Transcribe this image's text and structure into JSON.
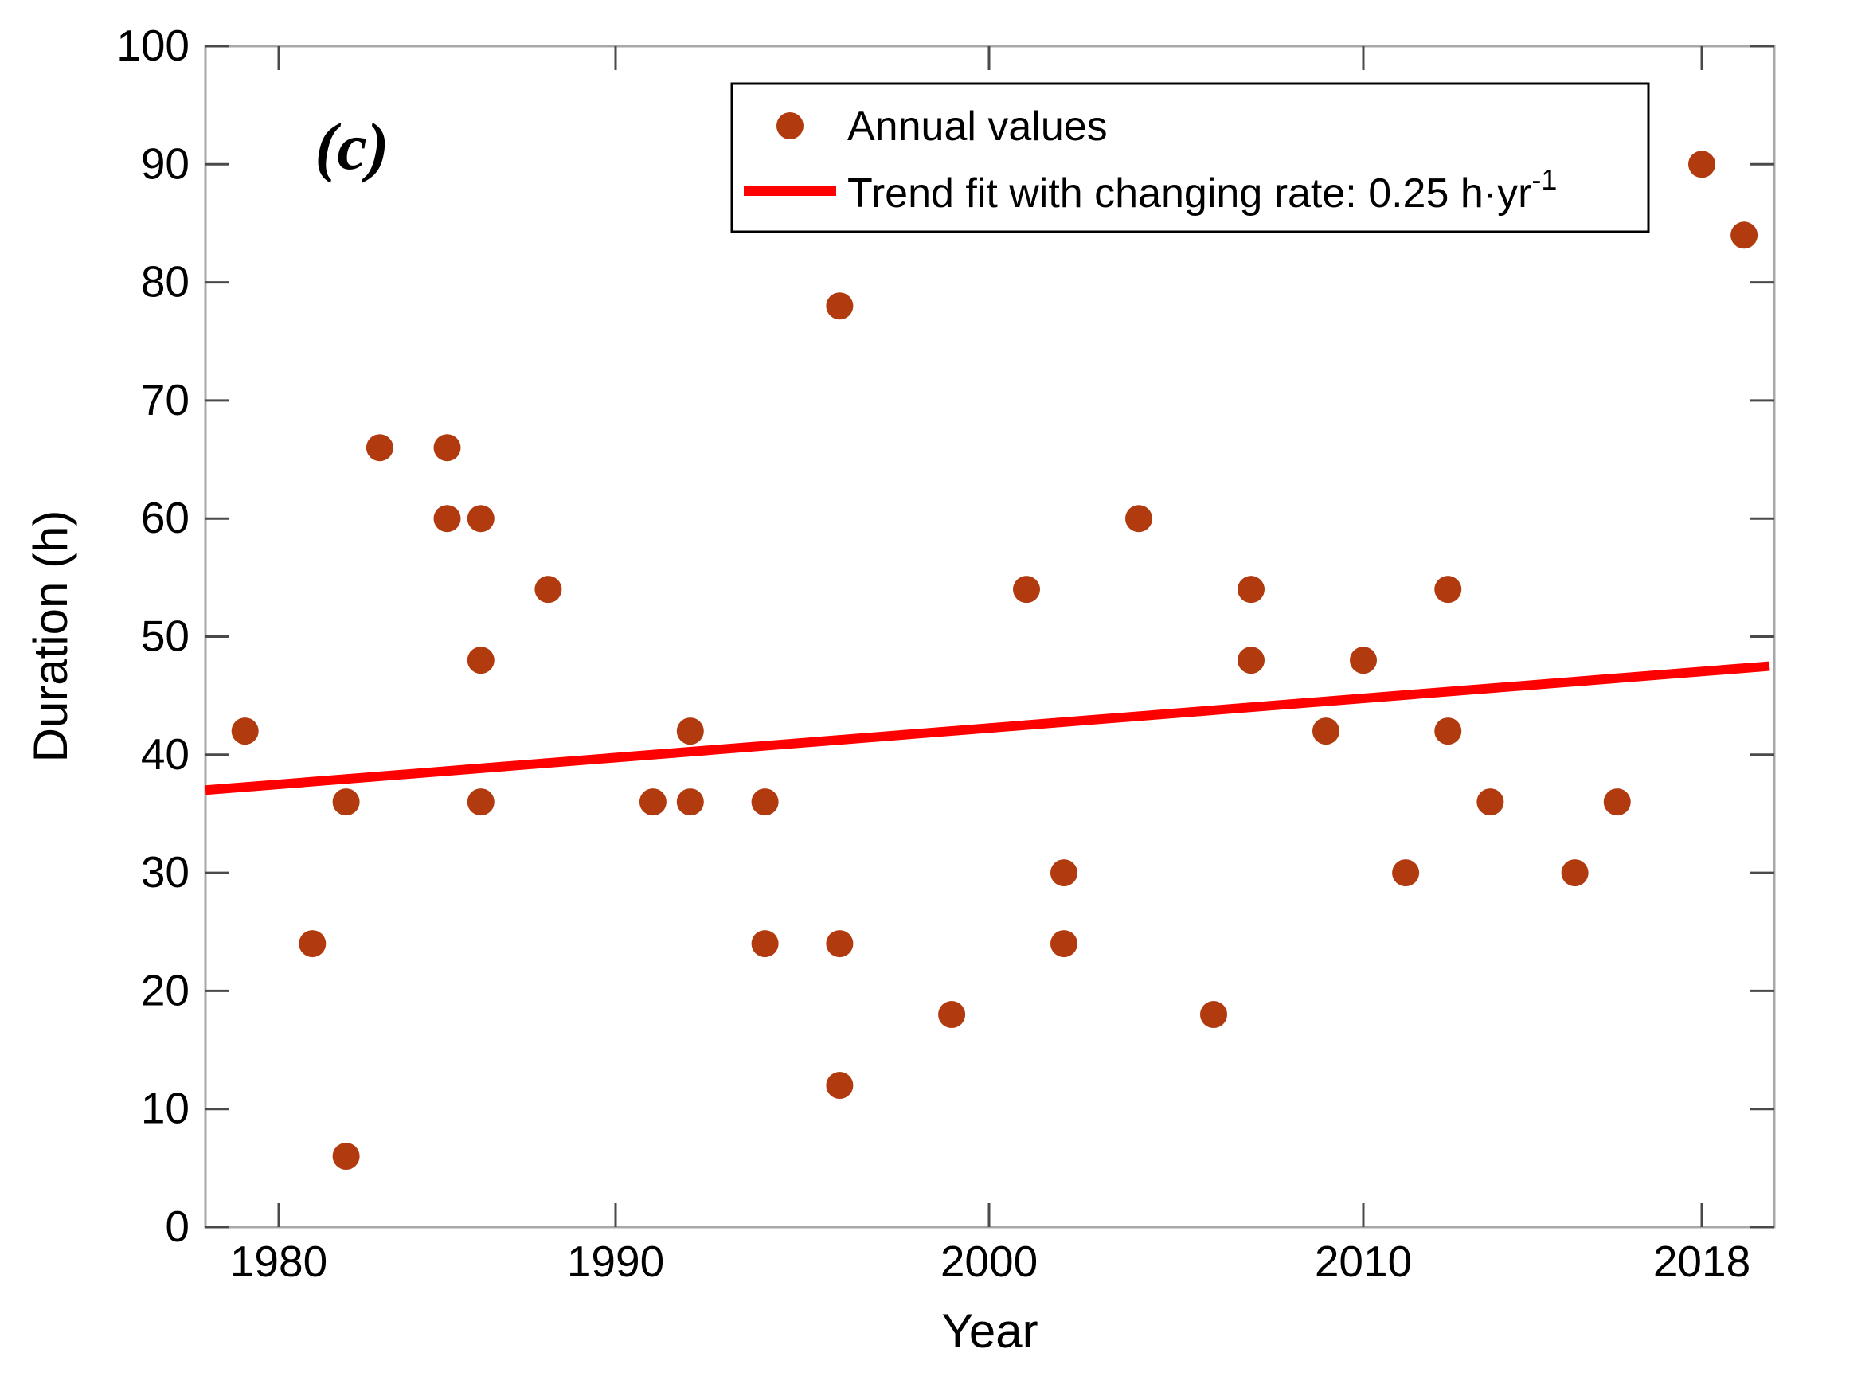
{
  "figure": {
    "panel_label": "(c)",
    "background": "#ffffff"
  },
  "chart_data": {
    "type": "scatter",
    "title": "(c)",
    "xlabel": "Year",
    "ylabel": "Duration (h)",
    "xlim": [
      1977.8,
      2019.6
    ],
    "ylim": [
      0,
      100
    ],
    "xticks": [
      1980,
      1990,
      2000,
      2010,
      2018
    ],
    "yticks": [
      0,
      10,
      20,
      30,
      40,
      50,
      60,
      70,
      80,
      90,
      100
    ],
    "grid": false,
    "legend_position": "top-center",
    "legend_annual_label": "Annual values",
    "legend_trend_label": "Trend fit with changing rate: 0.25 h·yr",
    "legend_trend_sup": "-1",
    "colors": {
      "point": "#b23a0f",
      "trend": "#ff0000",
      "box": "#a8a8a8",
      "tick": "#4a4a4a",
      "text": "#000000"
    },
    "series": [
      {
        "name": "Annual values",
        "type": "scatter",
        "color": "#b23a0f",
        "points": [
          [
            1979,
            42
          ],
          [
            1981,
            24
          ],
          [
            1982,
            36
          ],
          [
            1982,
            6
          ],
          [
            1983,
            66
          ],
          [
            1985,
            66
          ],
          [
            1985,
            60
          ],
          [
            1986,
            60
          ],
          [
            1986,
            48
          ],
          [
            1986,
            36
          ],
          [
            1988,
            54
          ],
          [
            1991,
            36
          ],
          [
            1992,
            36
          ],
          [
            1992,
            42
          ],
          [
            1994,
            36
          ],
          [
            1994,
            24
          ],
          [
            1996,
            78
          ],
          [
            1996,
            24
          ],
          [
            1996,
            12
          ],
          [
            1999,
            18
          ],
          [
            2001,
            54
          ],
          [
            2002,
            30
          ],
          [
            2002,
            24
          ],
          [
            2004,
            60
          ],
          [
            2006,
            18
          ],
          [
            2007,
            54
          ],
          [
            2007,
            48
          ],
          [
            2009,
            42
          ],
          [
            2010,
            48
          ],
          [
            2011,
            30
          ],
          [
            2012,
            54
          ],
          [
            2012,
            42
          ],
          [
            2013,
            36
          ],
          [
            2015,
            30
          ],
          [
            2016,
            36
          ],
          [
            2018,
            90
          ],
          [
            2019,
            84
          ]
        ]
      },
      {
        "name": "Trend fit with changing rate: 0.25 h·yr⁻¹",
        "type": "line",
        "color": "#ff0000",
        "changing_rate_h_per_yr": 0.25,
        "x": [
          1977.8,
          2019.6
        ],
        "y": [
          37.0,
          47.5
        ]
      }
    ]
  }
}
